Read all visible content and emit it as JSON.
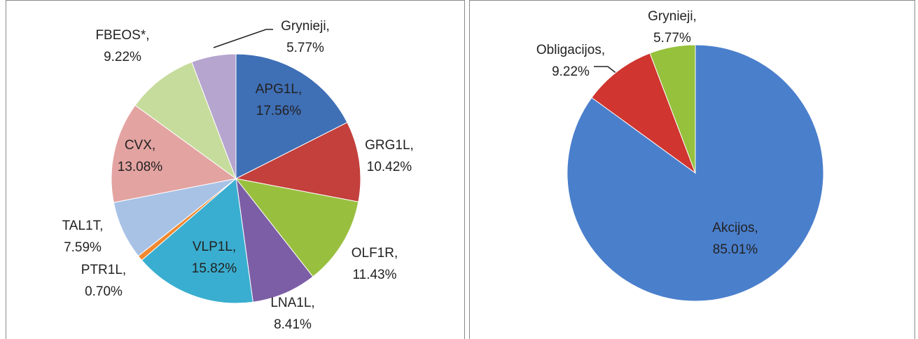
{
  "chart_data": [
    {
      "type": "pie",
      "categories": [
        "APG1L,",
        "GRG1L,",
        "OLF1R,",
        "LNA1L,",
        "VLP1L,",
        "PTR1L,",
        "TAL1T,",
        "CVX,",
        "FBEOS*,",
        "Grynieji,"
      ],
      "values": [
        17.56,
        10.42,
        11.43,
        8.41,
        15.82,
        0.7,
        7.59,
        13.08,
        9.22,
        5.77
      ],
      "value_labels": [
        "17.56%",
        "10.42%",
        "11.43%",
        "8.41%",
        "15.82%",
        "0.70%",
        "7.59%",
        "13.08%",
        "9.22%",
        "5.77%"
      ],
      "colors": [
        "#3f6fb5",
        "#c3403c",
        "#99bf3f",
        "#7c5ea6",
        "#3aaed0",
        "#f0882f",
        "#a8c2e6",
        "#e3a3a1",
        "#c6dc9c",
        "#b6a5cf"
      ]
    },
    {
      "type": "pie",
      "categories": [
        "Akcijos,",
        "Obligacijos,",
        "Grynieji,"
      ],
      "values": [
        85.01,
        9.22,
        5.77
      ],
      "value_labels": [
        "85.01%",
        "9.22%",
        "5.77%"
      ],
      "colors": [
        "#4a7fcc",
        "#d0352f",
        "#96c13c"
      ]
    }
  ]
}
